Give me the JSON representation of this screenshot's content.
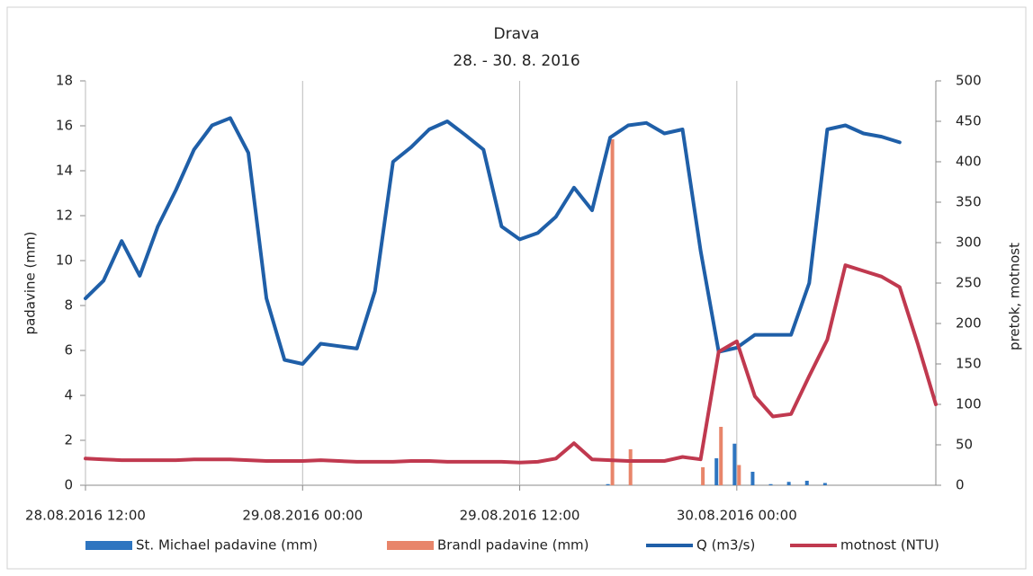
{
  "chart_data": {
    "type": "combo",
    "title": "Drava",
    "subtitle": "28. - 30. 8. 2016",
    "y_label": "padavine (mm)",
    "y2_label": "pretok, motnost",
    "x": [
      "28.08.2016 12:00",
      "28.08.2016 13:00",
      "28.08.2016 14:00",
      "28.08.2016 15:00",
      "28.08.2016 16:00",
      "28.08.2016 17:00",
      "28.08.2016 18:00",
      "28.08.2016 19:00",
      "28.08.2016 20:00",
      "28.08.2016 21:00",
      "28.08.2016 22:00",
      "28.08.2016 23:00",
      "29.08.2016 00:00",
      "29.08.2016 01:00",
      "29.08.2016 02:00",
      "29.08.2016 03:00",
      "29.08.2016 04:00",
      "29.08.2016 05:00",
      "29.08.2016 06:00",
      "29.08.2016 07:00",
      "29.08.2016 08:00",
      "29.08.2016 09:00",
      "29.08.2016 10:00",
      "29.08.2016 11:00",
      "29.08.2016 12:00",
      "29.08.2016 13:00",
      "29.08.2016 14:00",
      "29.08.2016 15:00",
      "29.08.2016 16:00",
      "29.08.2016 17:00",
      "29.08.2016 18:00",
      "29.08.2016 19:00",
      "29.08.2016 20:00",
      "29.08.2016 21:00",
      "29.08.2016 22:00",
      "29.08.2016 23:00",
      "30.08.2016 00:00",
      "30.08.2016 01:00",
      "30.08.2016 02:00",
      "30.08.2016 03:00",
      "30.08.2016 04:00",
      "30.08.2016 05:00",
      "30.08.2016 06:00",
      "30.08.2016 07:00",
      "30.08.2016 08:00",
      "30.08.2016 09:00",
      "30.08.2016 10:00",
      "30.08.2016 11:00"
    ],
    "series": [
      {
        "name": "St. Michael padavine (mm)",
        "type": "bar",
        "axis": "y",
        "color": "#2e75c0",
        "values": [
          0,
          0,
          0,
          0,
          0,
          0,
          0,
          0,
          0,
          0,
          0,
          0,
          0,
          0,
          0,
          0,
          0,
          0,
          0,
          0,
          0,
          0,
          0,
          0,
          0,
          0,
          0,
          0,
          0,
          0.05,
          0,
          0,
          0,
          0,
          0,
          1.2,
          1.85,
          0.6,
          0.05,
          0.15,
          0.2,
          0.1,
          0,
          0,
          0,
          0,
          0,
          0
        ]
      },
      {
        "name": "Brandl padavine (mm)",
        "type": "bar",
        "axis": "y",
        "color": "#e8856a",
        "values": [
          0,
          0,
          0,
          0,
          0,
          0,
          0,
          0,
          0,
          0,
          0,
          0,
          0,
          0,
          0,
          0,
          0,
          0,
          0,
          0,
          0,
          0,
          0,
          0,
          0,
          0,
          0,
          0,
          0,
          15.4,
          1.6,
          0,
          0,
          0,
          0.8,
          2.6,
          0.9,
          0,
          0,
          0,
          0,
          0,
          0,
          0,
          0,
          0,
          0,
          0
        ]
      },
      {
        "name": "Q (m3/s)",
        "type": "line",
        "axis": "y2",
        "color": "#1f5fa8",
        "values": [
          231,
          253,
          302,
          259,
          320,
          365,
          415,
          445,
          454,
          411,
          231,
          155,
          150,
          175,
          172,
          169,
          240,
          400,
          418,
          440,
          450,
          433,
          415,
          320,
          304,
          312,
          332,
          368,
          340,
          430,
          445,
          448,
          435,
          440,
          290,
          165,
          170,
          186,
          186,
          186,
          250,
          440,
          445,
          435,
          431,
          424,
          null,
          null
        ]
      },
      {
        "name": "motnost (NTU)",
        "type": "line",
        "axis": "y2",
        "color": "#c0394f",
        "values": [
          33,
          32,
          31,
          31,
          31,
          31,
          32,
          32,
          32,
          31,
          30,
          30,
          30,
          31,
          30,
          29,
          29,
          29,
          30,
          30,
          29,
          29,
          29,
          29,
          28,
          29,
          33,
          52,
          32,
          31,
          30,
          30,
          30,
          35,
          32,
          165,
          178,
          110,
          85,
          88,
          135,
          180,
          272,
          265,
          258,
          245,
          175,
          100
        ]
      }
    ],
    "xlim": [
      "28.08.2016 12:00",
      "30.08.2016 11:00"
    ],
    "xticks": [
      "28.08.2016 12:00",
      "29.08.2016 00:00",
      "29.08.2016 12:00",
      "30.08.2016 00:00"
    ],
    "ylim": [
      0,
      18
    ],
    "yticks": [
      0,
      2,
      4,
      6,
      8,
      10,
      12,
      14,
      16,
      18
    ],
    "y2lim": [
      0,
      500
    ],
    "y2ticks": [
      0,
      50,
      100,
      150,
      200,
      250,
      300,
      350,
      400,
      450,
      500
    ],
    "grid": "x",
    "legend": "bottom"
  }
}
